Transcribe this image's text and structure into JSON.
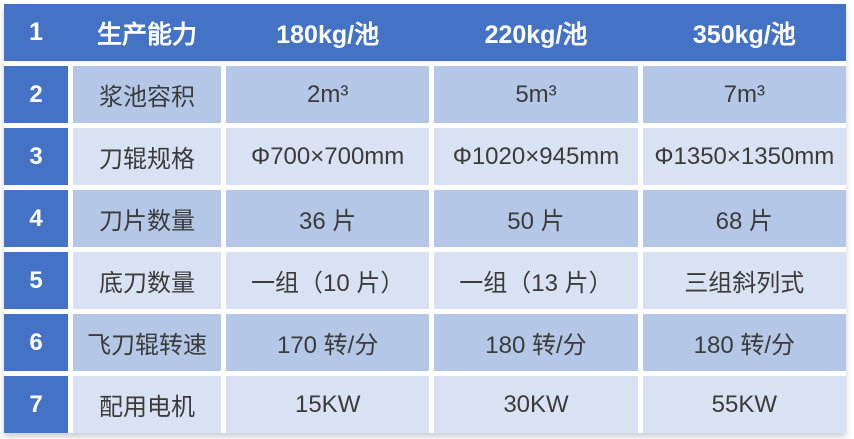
{
  "table": {
    "header": {
      "row_no": "1",
      "category_label": "生产能力",
      "cols": [
        "180kg/池",
        "220kg/池",
        "350kg/池"
      ]
    },
    "rows": [
      {
        "no": "2",
        "label": "浆池容积",
        "values": [
          "2m³",
          "5m³",
          "7m³"
        ]
      },
      {
        "no": "3",
        "label": "刀辊规格",
        "values": [
          "Φ700×700mm",
          "Φ1020×945mm",
          "Φ1350×1350mm"
        ]
      },
      {
        "no": "4",
        "label": "刀片数量",
        "values": [
          "36 片",
          "50 片",
          "68 片"
        ]
      },
      {
        "no": "5",
        "label": "底刀数量",
        "values": [
          "一组（10 片）",
          "一组（13 片）",
          "三组斜列式"
        ]
      },
      {
        "no": "6",
        "label": "飞刀辊转速",
        "values": [
          "170 转/分",
          "180 转/分",
          "180 转/分"
        ]
      },
      {
        "no": "7",
        "label": "配用电机",
        "values": [
          "15KW",
          "30KW",
          "55KW"
        ]
      }
    ],
    "colors": {
      "accent_blue": "#4472C4",
      "band_medium_blue": "#B4C7E7",
      "band_light_blue": "#D9E2F3",
      "header_text": "#FFFFFF",
      "body_text": "#3B3B3B",
      "separator": "#FFFFFF"
    }
  }
}
